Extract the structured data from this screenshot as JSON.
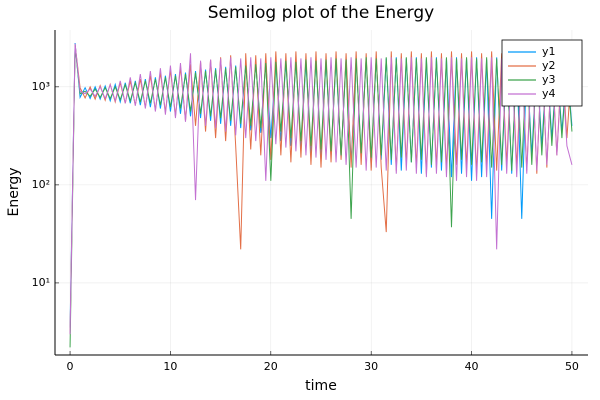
{
  "chart_data": {
    "type": "line",
    "title": "Semilog plot of the Energy",
    "xlabel": "time",
    "ylabel": "Energy",
    "log_y": true,
    "grid": true,
    "legend": "top-right",
    "xlim": [
      -1.5,
      51.6
    ],
    "xticks": [
      0,
      10,
      20,
      30,
      40,
      50
    ],
    "ylim": [
      1.84,
      3800
    ],
    "yticks": [
      {
        "value": 10,
        "label": "10¹"
      },
      {
        "value": 100,
        "label": "10²"
      },
      {
        "value": 1000,
        "label": "10³"
      }
    ],
    "x": [
      0,
      0.5,
      1,
      1.5,
      2,
      2.5,
      3,
      3.5,
      4,
      4.5,
      5,
      5.5,
      6,
      6.5,
      7,
      7.5,
      8,
      8.5,
      9,
      9.5,
      10,
      10.5,
      11,
      11.5,
      12,
      12.5,
      13,
      13.5,
      14,
      14.5,
      15,
      15.5,
      16,
      16.5,
      17,
      17.5,
      18,
      18.5,
      19,
      19.5,
      20,
      20.5,
      21,
      21.5,
      22,
      22.5,
      23,
      23.5,
      24,
      24.5,
      25,
      25.5,
      26,
      26.5,
      27,
      27.5,
      28,
      28.5,
      29,
      29.5,
      30,
      30.5,
      31,
      31.5,
      32,
      32.5,
      33,
      33.5,
      34,
      34.5,
      35,
      35.5,
      36,
      36.5,
      37,
      37.5,
      38,
      38.5,
      39,
      39.5,
      40,
      40.5,
      41,
      41.5,
      42,
      42.5,
      43,
      43.5,
      44,
      44.5,
      45,
      45.5,
      46,
      46.5,
      47,
      47.5,
      48,
      48.5,
      49,
      49.5,
      50
    ],
    "series": [
      {
        "name": "y1",
        "color": "#009afa",
        "values": [
          3.5,
          2800,
          780,
          980,
          760,
          1000,
          750,
          1020,
          720,
          1060,
          700,
          1100,
          680,
          1150,
          650,
          1200,
          620,
          1250,
          600,
          1300,
          560,
          1350,
          530,
          1400,
          500,
          1450,
          480,
          1500,
          450,
          1550,
          420,
          1600,
          400,
          1650,
          380,
          1700,
          360,
          1750,
          340,
          1800,
          300,
          1750,
          280,
          1800,
          250,
          1850,
          230,
          1800,
          200,
          1900,
          180,
          1850,
          200,
          1900,
          190,
          1950,
          170,
          1900,
          200,
          1950,
          150,
          2000,
          180,
          1950,
          160,
          2000,
          140,
          1950,
          170,
          2000,
          130,
          1900,
          150,
          2000,
          140,
          1950,
          120,
          2000,
          130,
          1950,
          110,
          2000,
          120,
          1900,
          45,
          2000,
          140,
          1950,
          130,
          2000,
          45,
          1950,
          200,
          1850,
          250,
          1800,
          300,
          1700,
          350,
          1600,
          400
        ]
      },
      {
        "name": "y2",
        "color": "#e36f47",
        "values": [
          3,
          2700,
          980,
          770,
          1000,
          750,
          1030,
          730,
          1060,
          700,
          1100,
          680,
          1150,
          650,
          1200,
          620,
          1300,
          580,
          1400,
          550,
          1500,
          500,
          1600,
          450,
          1700,
          400,
          1800,
          350,
          1900,
          300,
          2000,
          280,
          2100,
          250,
          22,
          2200,
          230,
          2100,
          200,
          2200,
          180,
          2300,
          200,
          2200,
          170,
          2300,
          190,
          2200,
          160,
          2300,
          150,
          2200,
          170,
          2300,
          180,
          2200,
          150,
          2300,
          160,
          2200,
          140,
          2300,
          150,
          33,
          2300,
          140,
          2200,
          160,
          2300,
          150,
          2200,
          130,
          2300,
          150,
          2200,
          140,
          2300,
          160,
          2200,
          150,
          2300,
          130,
          2200,
          150,
          2300,
          140,
          2200,
          160,
          2300,
          150,
          2200,
          140,
          2300,
          130,
          2200,
          150,
          2100,
          200,
          2000,
          300,
          1800
        ]
      },
      {
        "name": "y3",
        "color": "#3ea44e",
        "values": [
          2.2,
          2600,
          850,
          900,
          800,
          950,
          780,
          980,
          760,
          1000,
          740,
          1050,
          720,
          1100,
          700,
          1150,
          680,
          1200,
          650,
          1250,
          620,
          1300,
          600,
          1350,
          560,
          1400,
          530,
          1450,
          500,
          1500,
          480,
          1550,
          450,
          1600,
          420,
          1650,
          400,
          1700,
          380,
          1750,
          110,
          1800,
          350,
          1850,
          300,
          1800,
          280,
          1900,
          250,
          1850,
          230,
          1900,
          220,
          1950,
          200,
          1900,
          45,
          1950,
          210,
          2000,
          190,
          1950,
          200,
          2000,
          180,
          1950,
          190,
          2000,
          170,
          1950,
          180,
          2000,
          160,
          1950,
          170,
          2000,
          37,
          1950,
          180,
          2000,
          160,
          1950,
          170,
          2000,
          150,
          1950,
          160,
          2000,
          140,
          1950,
          150,
          2000,
          160,
          1950,
          200,
          1900,
          250,
          1800,
          300,
          1700,
          350
        ]
      },
      {
        "name": "y4",
        "color": "#c371d2",
        "values": [
          3,
          2750,
          900,
          850,
          950,
          800,
          1000,
          760,
          1050,
          720,
          1150,
          680,
          1250,
          640,
          1350,
          600,
          1450,
          560,
          1550,
          520,
          1650,
          480,
          1750,
          440,
          2200,
          70,
          1850,
          400,
          1900,
          380,
          1950,
          350,
          2000,
          320,
          1950,
          300,
          2000,
          280,
          1950,
          110,
          2000,
          260,
          1950,
          240,
          2000,
          220,
          1950,
          200,
          2000,
          190,
          1950,
          180,
          2000,
          170,
          1950,
          160,
          2000,
          150,
          1950,
          140,
          2000,
          150,
          1950,
          140,
          2000,
          130,
          1950,
          140,
          2000,
          130,
          1950,
          120,
          2000,
          130,
          1950,
          120,
          2000,
          110,
          1950,
          120,
          2000,
          110,
          1950,
          120,
          2000,
          22,
          1950,
          130,
          2000,
          120,
          1950,
          130,
          2000,
          140,
          1900,
          160,
          1800,
          200,
          1700,
          250,
          160
        ]
      }
    ]
  }
}
